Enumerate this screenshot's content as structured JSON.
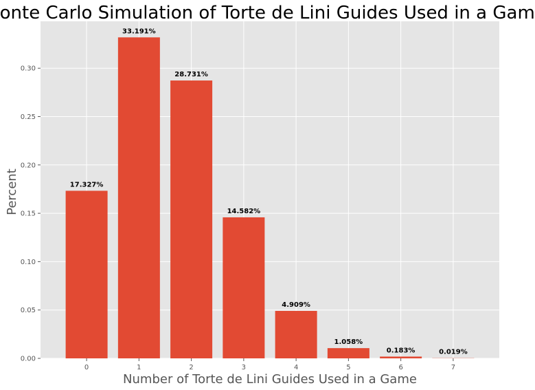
{
  "chart_data": {
    "type": "bar",
    "title": "Monte Carlo Simulation of Torte de Lini Guides Used in a Game",
    "xlabel": "Number of Torte de Lini Guides Used in a Game",
    "ylabel": "Percent",
    "categories": [
      "0",
      "1",
      "2",
      "3",
      "4",
      "5",
      "6",
      "7"
    ],
    "values": [
      0.17327,
      0.33191,
      0.28731,
      0.14582,
      0.04909,
      0.01058,
      0.00183,
      0.00019
    ],
    "data_labels": [
      "17.327%",
      "33.191%",
      "28.731%",
      "14.582%",
      "4.909%",
      "1.058%",
      "0.183%",
      "0.019%"
    ],
    "ylim": [
      0,
      0.3485
    ],
    "yticks": [
      "0.00",
      "0.05",
      "0.10",
      "0.15",
      "0.20",
      "0.25",
      "0.30"
    ],
    "grid": true,
    "colors": {
      "bar": "#E24A33",
      "plot_background": "#E5E5E5",
      "grid": "#FFFFFF"
    }
  }
}
